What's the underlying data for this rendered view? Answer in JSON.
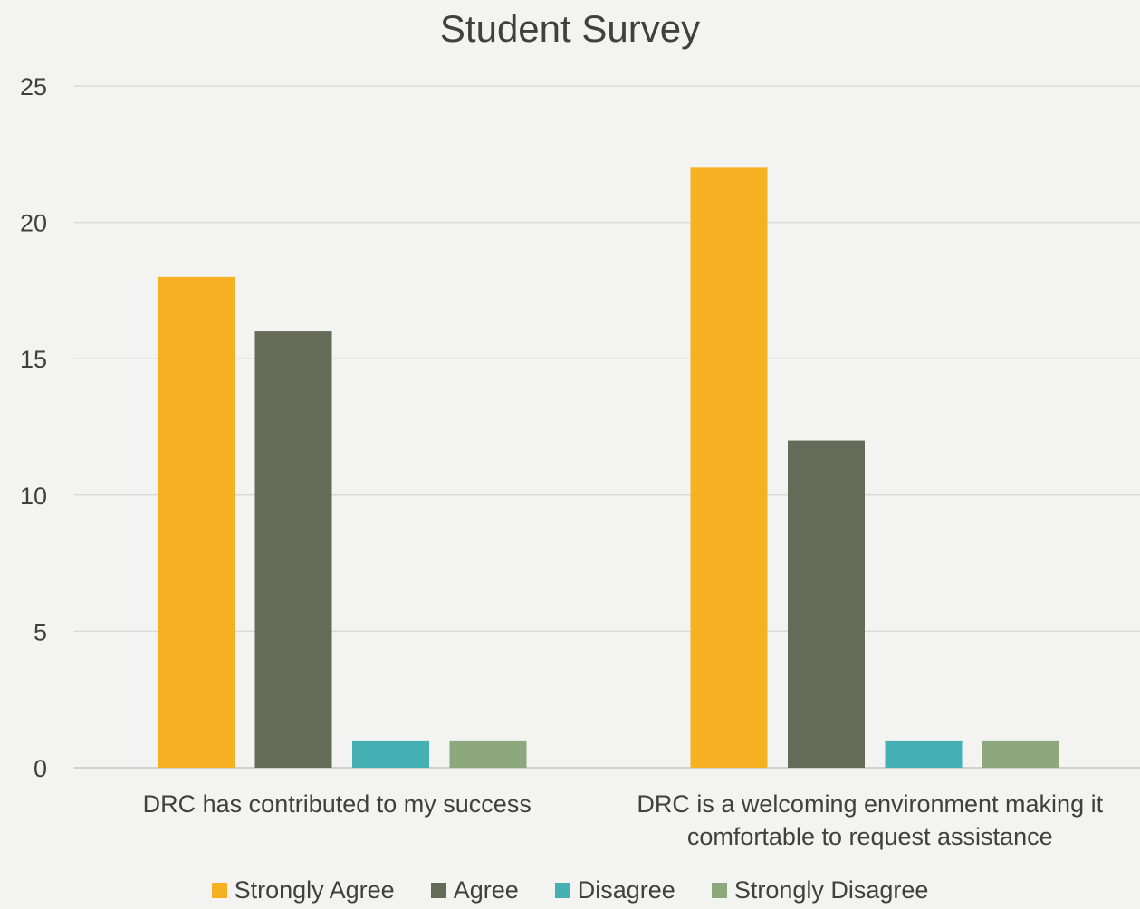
{
  "chart_data": {
    "type": "bar",
    "title": "Student Survey",
    "categories": [
      [
        "DRC has contributed to my success"
      ],
      [
        "DRC is a welcoming environment making it",
        "comfortable to request assistance"
      ]
    ],
    "series": [
      {
        "name": "Strongly Agree",
        "color": "#f6b122",
        "values": [
          18,
          22
        ]
      },
      {
        "name": "Agree",
        "color": "#666b58",
        "values": [
          16,
          12
        ]
      },
      {
        "name": "Disagree",
        "color": "#44b0b4",
        "values": [
          1,
          1
        ]
      },
      {
        "name": "Strongly Disagree",
        "color": "#8ea87e",
        "values": [
          1,
          1
        ]
      }
    ],
    "ylim": [
      0,
      25
    ],
    "yticks": [
      0,
      5,
      10,
      15,
      20,
      25
    ],
    "grid": true,
    "legend_position": "bottom",
    "xlabel": "",
    "ylabel": ""
  }
}
